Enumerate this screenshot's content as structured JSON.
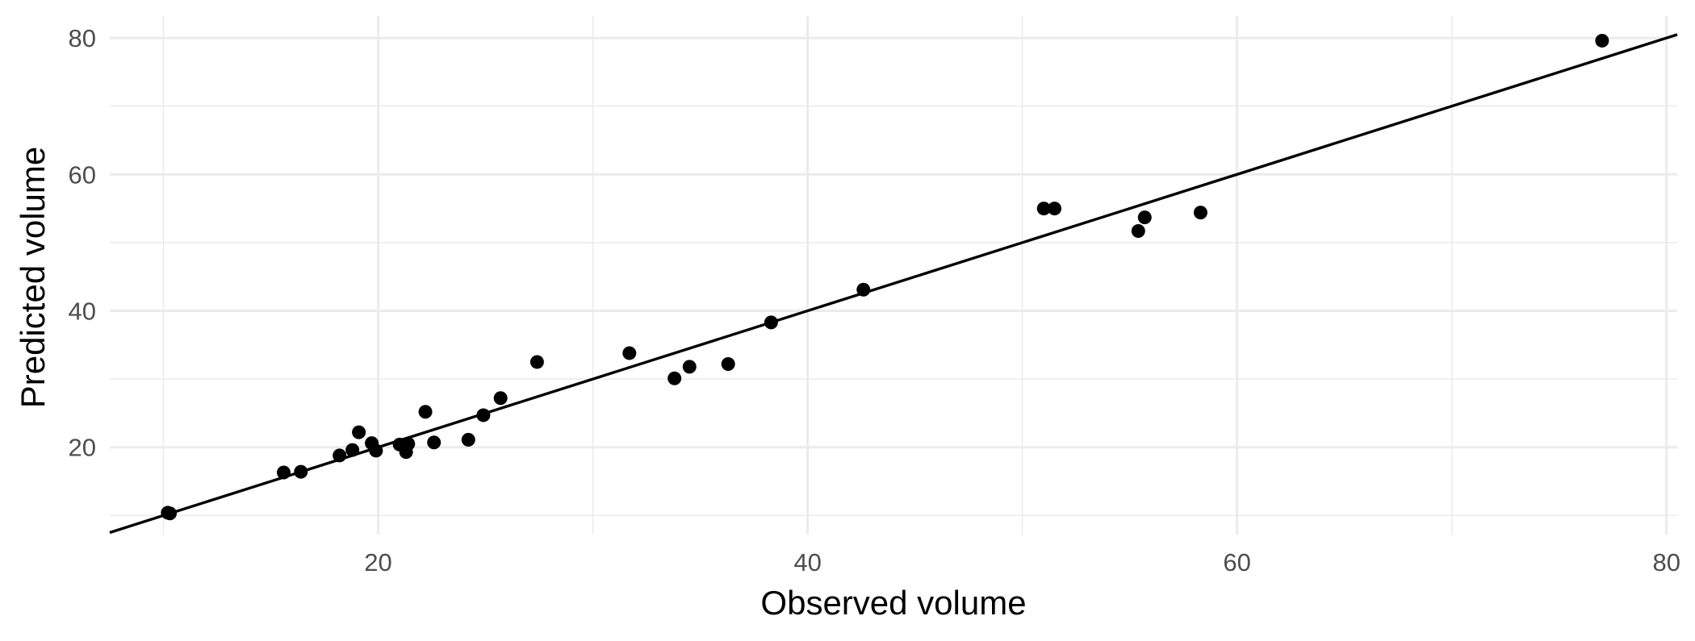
{
  "chart_data": {
    "type": "scatter",
    "title": "",
    "xlabel": "Observed volume",
    "ylabel": "Predicted volume",
    "xlim": [
      7.5,
      80.5
    ],
    "ylim": [
      7.2,
      83.2
    ],
    "x_ticks": [
      20,
      40,
      60,
      80
    ],
    "y_ticks": [
      20,
      40,
      60,
      80
    ],
    "x_tick_labels": [
      "20",
      "40",
      "60",
      "80"
    ],
    "y_tick_labels": [
      "20",
      "40",
      "60",
      "80"
    ],
    "grid": true,
    "legend": "none",
    "point_color": "#000000",
    "line_color": "#000000",
    "reference_line": {
      "type": "y=x"
    },
    "points": [
      {
        "x": 10.2,
        "y": 10.4
      },
      {
        "x": 10.3,
        "y": 10.3
      },
      {
        "x": 15.6,
        "y": 16.3
      },
      {
        "x": 16.4,
        "y": 16.4
      },
      {
        "x": 18.2,
        "y": 18.8
      },
      {
        "x": 18.8,
        "y": 19.6
      },
      {
        "x": 19.1,
        "y": 22.2
      },
      {
        "x": 19.7,
        "y": 20.6
      },
      {
        "x": 19.9,
        "y": 19.5
      },
      {
        "x": 21.0,
        "y": 20.4
      },
      {
        "x": 21.3,
        "y": 19.3
      },
      {
        "x": 21.4,
        "y": 20.5
      },
      {
        "x": 22.2,
        "y": 25.2
      },
      {
        "x": 22.6,
        "y": 20.7
      },
      {
        "x": 24.2,
        "y": 21.1
      },
      {
        "x": 24.9,
        "y": 24.7
      },
      {
        "x": 25.7,
        "y": 27.2
      },
      {
        "x": 27.4,
        "y": 32.5
      },
      {
        "x": 31.7,
        "y": 33.8
      },
      {
        "x": 33.8,
        "y": 30.1
      },
      {
        "x": 34.5,
        "y": 31.8
      },
      {
        "x": 36.3,
        "y": 32.2
      },
      {
        "x": 38.3,
        "y": 38.3
      },
      {
        "x": 42.6,
        "y": 43.1
      },
      {
        "x": 51.0,
        "y": 55.0
      },
      {
        "x": 51.5,
        "y": 55.0
      },
      {
        "x": 55.4,
        "y": 51.7
      },
      {
        "x": 55.7,
        "y": 53.7
      },
      {
        "x": 58.3,
        "y": 54.4
      },
      {
        "x": 77.0,
        "y": 79.6
      }
    ]
  }
}
